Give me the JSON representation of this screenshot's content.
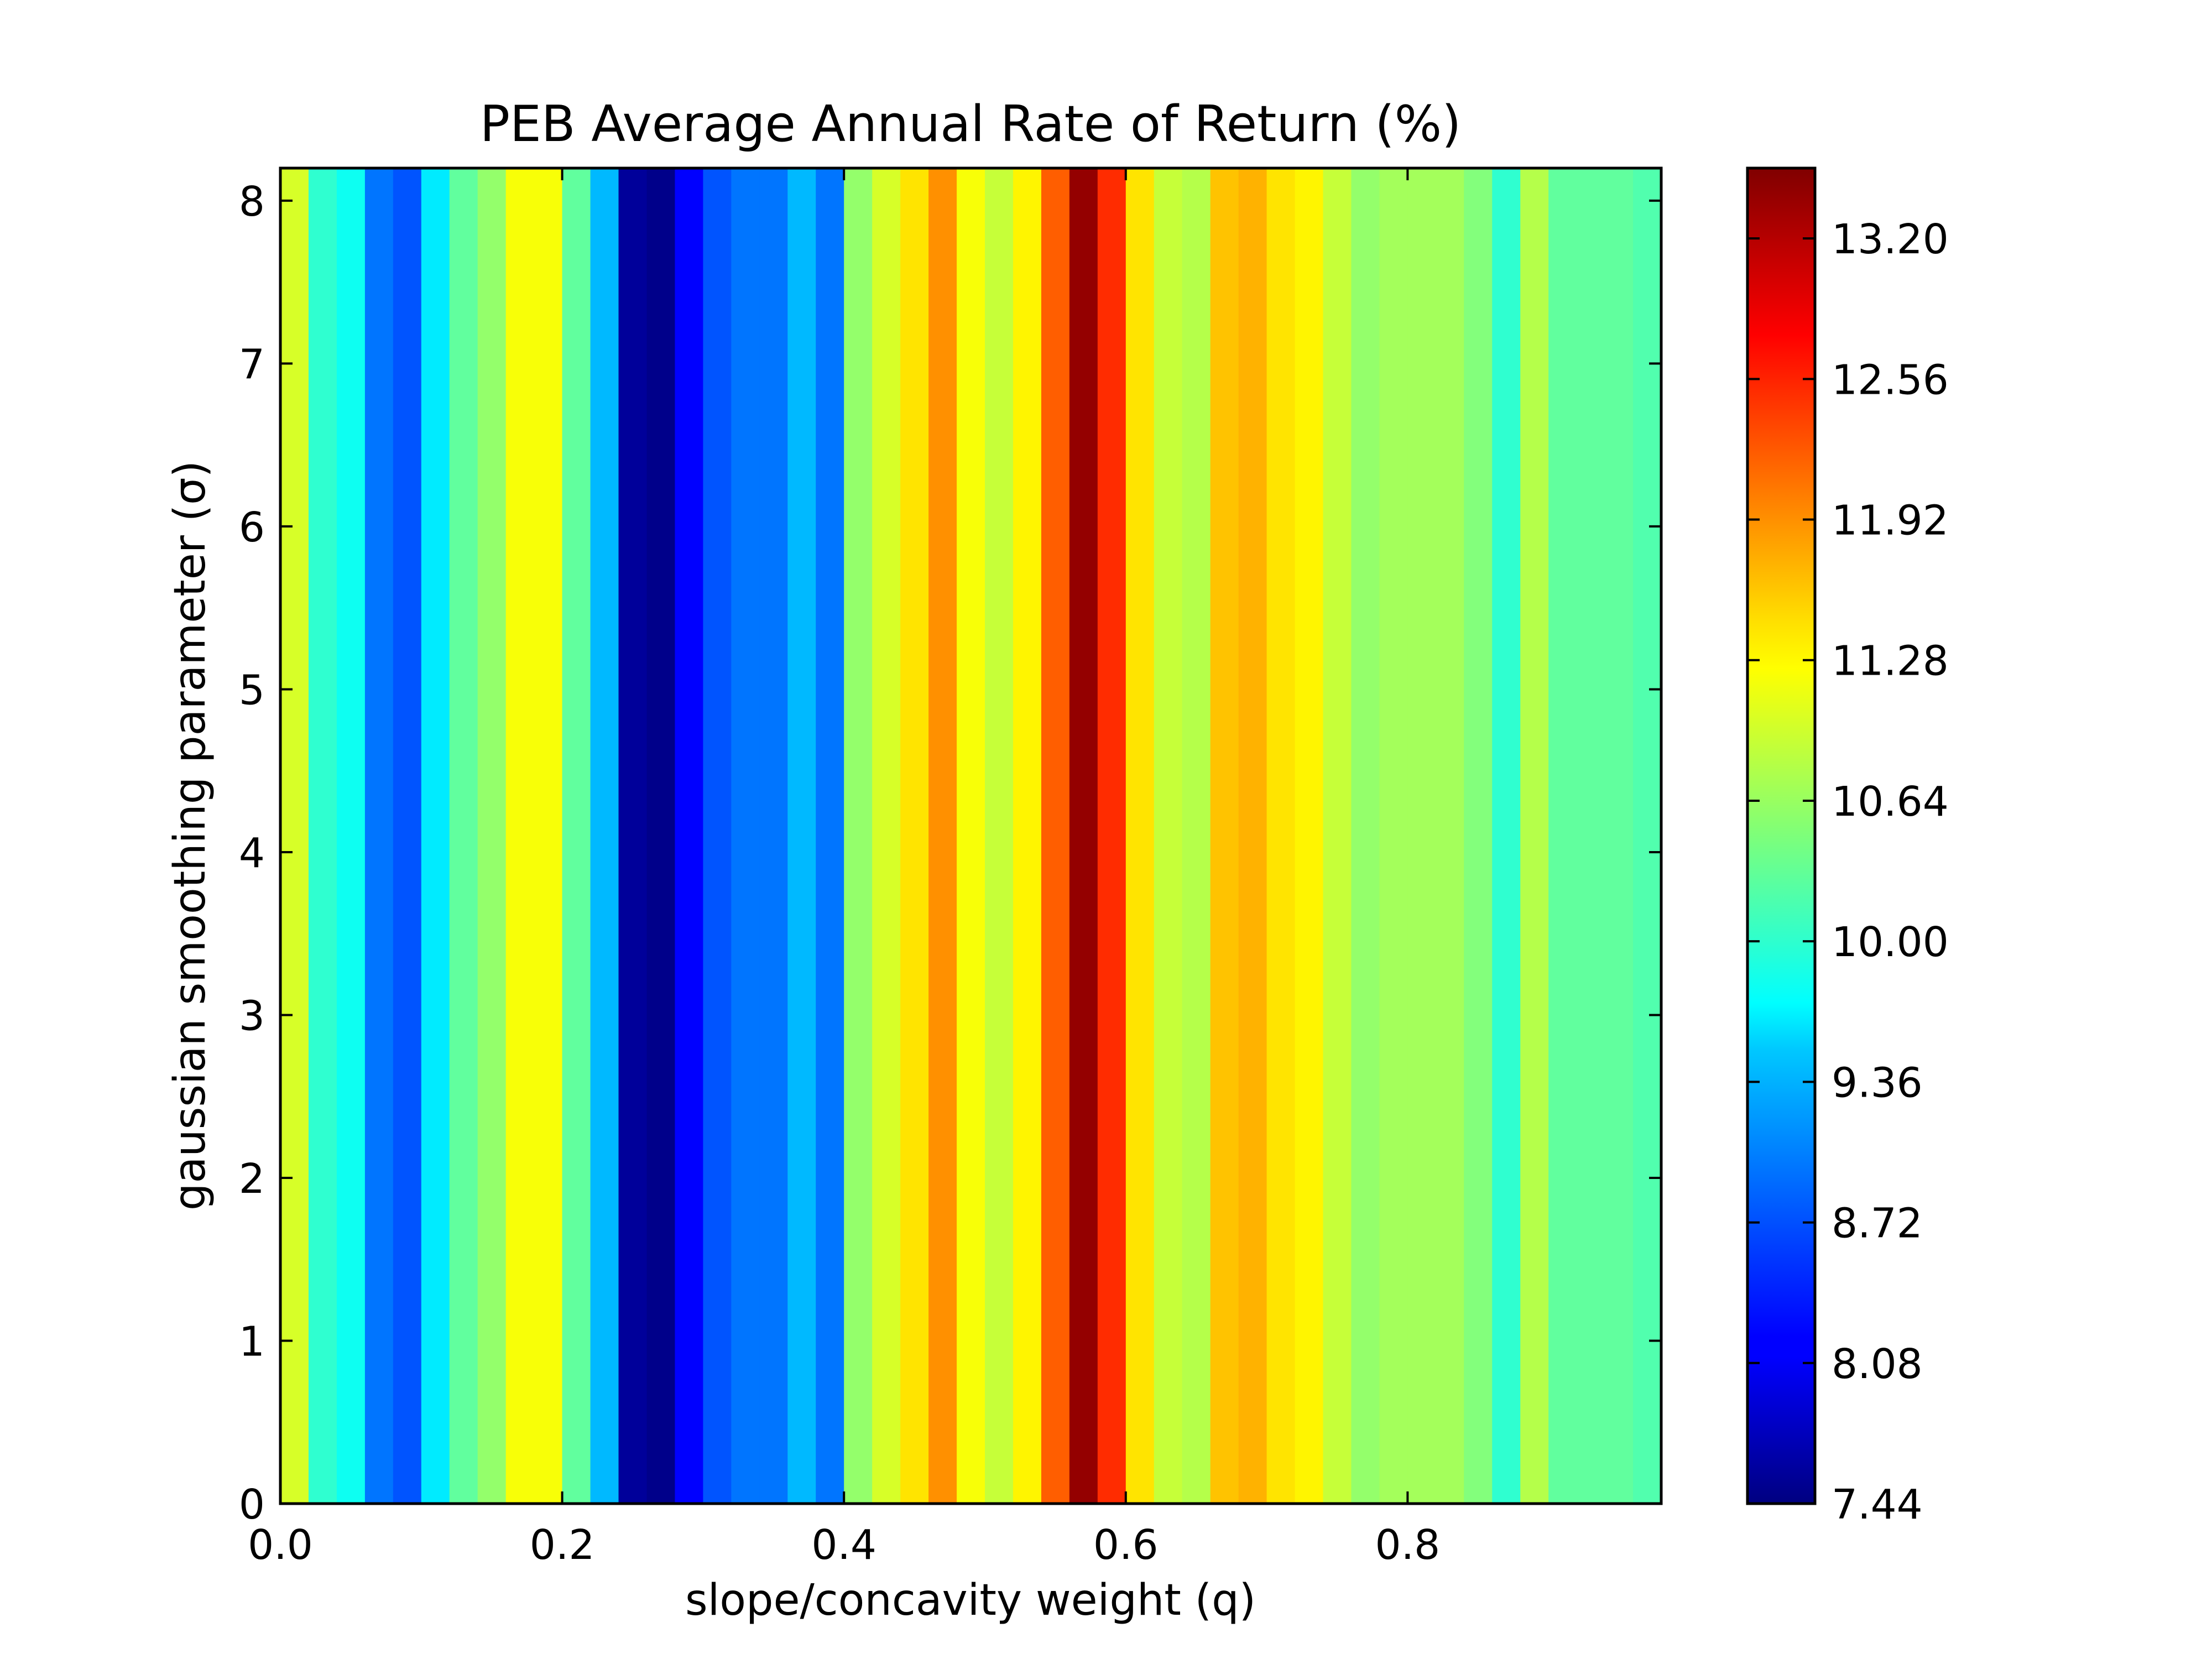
{
  "chart_data": {
    "type": "heatmap",
    "title": "PEB Average Annual Rate of Return (%)",
    "xlabel": "slope/concavity weight (q)",
    "ylabel": "gaussian smoothing parameter (σ)",
    "xlim": [
      0.0,
      0.98
    ],
    "ylim": [
      0,
      8.2
    ],
    "xticks": [
      "0.0",
      "0.2",
      "0.4",
      "0.6",
      "0.8"
    ],
    "yticks": [
      "0",
      "1",
      "2",
      "3",
      "4",
      "5",
      "6",
      "7",
      "8"
    ],
    "colormap": "jet",
    "colorbar": {
      "min": 7.44,
      "max": 13.52,
      "ticks": [
        "7.44",
        "8.08",
        "8.72",
        "9.36",
        "10.00",
        "10.64",
        "11.28",
        "11.92",
        "12.56",
        "13.20"
      ]
    },
    "x": [
      0.0,
      0.02,
      0.04,
      0.06,
      0.08,
      0.1,
      0.12,
      0.14,
      0.16,
      0.18,
      0.2,
      0.22,
      0.24,
      0.26,
      0.28,
      0.3,
      0.32,
      0.34,
      0.36,
      0.38,
      0.4,
      0.42,
      0.44,
      0.46,
      0.48,
      0.5,
      0.52,
      0.54,
      0.56,
      0.58,
      0.6,
      0.62,
      0.64,
      0.66,
      0.68,
      0.7,
      0.72,
      0.74,
      0.76,
      0.78,
      0.8,
      0.82,
      0.84,
      0.86,
      0.88,
      0.9,
      0.92,
      0.94,
      0.96
    ],
    "values": [
      11.0,
      10.0,
      9.8,
      8.9,
      8.7,
      9.6,
      10.3,
      10.6,
      11.2,
      11.2,
      10.3,
      9.3,
      7.6,
      7.5,
      8.2,
      8.7,
      8.9,
      8.9,
      9.3,
      8.9,
      10.6,
      11.0,
      11.4,
      11.9,
      11.2,
      10.9,
      11.3,
      12.2,
      13.4,
      12.5,
      11.4,
      10.9,
      10.8,
      11.6,
      11.7,
      11.4,
      11.3,
      10.9,
      10.6,
      10.7,
      10.7,
      10.7,
      10.5,
      10.0,
      10.8,
      10.3,
      10.3,
      10.3,
      10.2
    ],
    "y_range_note": "values constant along sigma"
  }
}
